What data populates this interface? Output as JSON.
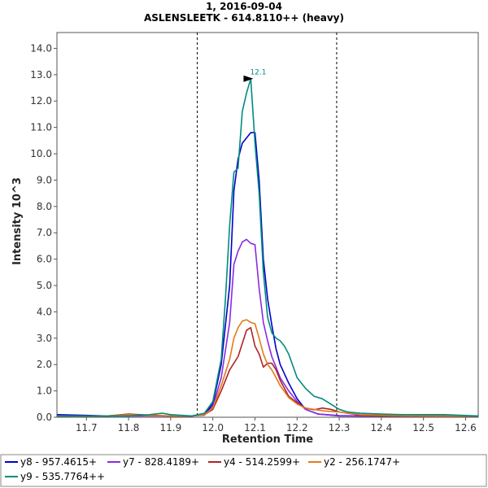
{
  "chart_data": {
    "type": "line",
    "title": "1, 2016-09-04",
    "subtitle": "ASLENSLEETK - 614.8110++ (heavy)",
    "xlabel": "Retention Time",
    "ylabel": "Intensity  10^3",
    "xlim": [
      11.63,
      12.63
    ],
    "ylim": [
      0,
      14.6
    ],
    "x_ticks": [
      "11.7",
      "11.8",
      "11.9",
      "12.0",
      "12.1",
      "12.2",
      "12.3",
      "12.4",
      "12.5",
      "12.6"
    ],
    "x_tick_values": [
      11.7,
      11.8,
      11.9,
      12.0,
      12.1,
      12.2,
      12.3,
      12.4,
      12.5,
      12.6
    ],
    "y_ticks": [
      "0.0",
      "1.0",
      "2.0",
      "3.0",
      "4.0",
      "5.0",
      "6.0",
      "7.0",
      "8.0",
      "9.0",
      "10.0",
      "11.0",
      "12.0",
      "13.0",
      "14.0"
    ],
    "y_tick_values": [
      0,
      1,
      2,
      3,
      4,
      5,
      6,
      7,
      8,
      9,
      10,
      11,
      12,
      13,
      14
    ],
    "boundaries": [
      11.963,
      12.294
    ],
    "peak": {
      "x": 12.1,
      "y": 12.85,
      "label": "12.1"
    },
    "series": [
      {
        "name": "y8 - 957.4615+",
        "color": "#0000cc",
        "x": [
          11.63,
          11.7,
          11.75,
          11.8,
          11.85,
          11.9,
          11.95,
          11.98,
          12.0,
          12.02,
          12.04,
          12.05,
          12.06,
          12.07,
          12.08,
          12.09,
          12.1,
          12.11,
          12.12,
          12.13,
          12.14,
          12.15,
          12.16,
          12.18,
          12.2,
          12.22,
          12.25,
          12.3,
          12.35,
          12.4,
          12.45,
          12.5,
          12.55,
          12.63
        ],
        "values": [
          0.1,
          0.07,
          0.05,
          0.08,
          0.06,
          0.05,
          0.05,
          0.1,
          0.5,
          2.0,
          5.0,
          8.6,
          9.8,
          10.4,
          10.6,
          10.8,
          10.8,
          9.0,
          6.0,
          4.5,
          3.5,
          2.6,
          2.0,
          1.3,
          0.7,
          0.3,
          0.12,
          0.06,
          0.05,
          0.05,
          0.05,
          0.05,
          0.05,
          0.05
        ]
      },
      {
        "name": "y7 - 828.4189+",
        "color": "#8a2be2",
        "x": [
          11.63,
          11.7,
          11.75,
          11.8,
          11.85,
          11.9,
          11.95,
          11.98,
          12.0,
          12.02,
          12.04,
          12.05,
          12.06,
          12.07,
          12.08,
          12.09,
          12.1,
          12.11,
          12.12,
          12.13,
          12.14,
          12.15,
          12.16,
          12.17,
          12.18,
          12.2,
          12.22,
          12.25,
          12.3,
          12.35,
          12.4,
          12.45,
          12.5,
          12.55,
          12.63
        ],
        "values": [
          0.06,
          0.05,
          0.05,
          0.05,
          0.05,
          0.05,
          0.05,
          0.08,
          0.4,
          1.5,
          3.6,
          5.8,
          6.3,
          6.65,
          6.75,
          6.6,
          6.55,
          4.9,
          3.6,
          2.9,
          2.3,
          1.9,
          1.5,
          1.25,
          1.0,
          0.6,
          0.3,
          0.12,
          0.05,
          0.05,
          0.05,
          0.05,
          0.05,
          0.05,
          0.05
        ]
      },
      {
        "name": "y4 - 514.2599+",
        "color": "#b22222",
        "x": [
          11.63,
          11.7,
          11.75,
          11.8,
          11.85,
          11.9,
          11.95,
          11.98,
          12.0,
          12.02,
          12.04,
          12.06,
          12.07,
          12.08,
          12.09,
          12.1,
          12.11,
          12.12,
          12.13,
          12.14,
          12.15,
          12.16,
          12.18,
          12.2,
          12.22,
          12.24,
          12.26,
          12.28,
          12.3,
          12.35,
          12.4,
          12.45,
          12.5,
          12.55,
          12.63
        ],
        "values": [
          0.05,
          0.05,
          0.05,
          0.12,
          0.08,
          0.05,
          0.05,
          0.1,
          0.3,
          1.0,
          1.8,
          2.3,
          2.8,
          3.3,
          3.4,
          2.7,
          2.4,
          1.9,
          2.05,
          2.05,
          1.8,
          1.4,
          0.8,
          0.55,
          0.35,
          0.28,
          0.35,
          0.3,
          0.2,
          0.08,
          0.05,
          0.05,
          0.05,
          0.05,
          0.05
        ]
      },
      {
        "name": "y2 - 256.1747+",
        "color": "#e07b1a",
        "x": [
          11.63,
          11.7,
          11.75,
          11.8,
          11.85,
          11.9,
          11.95,
          11.98,
          12.0,
          12.02,
          12.04,
          12.05,
          12.06,
          12.07,
          12.08,
          12.09,
          12.1,
          12.11,
          12.12,
          12.13,
          12.14,
          12.15,
          12.16,
          12.18,
          12.2,
          12.22,
          12.24,
          12.26,
          12.28,
          12.3,
          12.35,
          12.4,
          12.45,
          12.5,
          12.55,
          12.63
        ],
        "values": [
          0.05,
          0.05,
          0.05,
          0.1,
          0.06,
          0.05,
          0.05,
          0.1,
          0.35,
          1.2,
          2.2,
          3.0,
          3.4,
          3.65,
          3.7,
          3.6,
          3.55,
          3.0,
          2.4,
          2.0,
          1.8,
          1.5,
          1.2,
          0.75,
          0.5,
          0.35,
          0.3,
          0.25,
          0.22,
          0.2,
          0.1,
          0.08,
          0.06,
          0.05,
          0.05,
          0.05
        ]
      },
      {
        "name": "y9 - 535.7764++",
        "color": "#008b80",
        "x": [
          11.63,
          11.7,
          11.75,
          11.8,
          11.85,
          11.88,
          11.9,
          11.95,
          11.98,
          12.0,
          12.02,
          12.03,
          12.04,
          12.05,
          12.06,
          12.07,
          12.08,
          12.09,
          12.1,
          12.11,
          12.12,
          12.13,
          12.14,
          12.15,
          12.16,
          12.17,
          12.18,
          12.2,
          12.22,
          12.24,
          12.26,
          12.28,
          12.3,
          12.32,
          12.35,
          12.4,
          12.45,
          12.5,
          12.55,
          12.63
        ],
        "values": [
          0.05,
          0.05,
          0.05,
          0.05,
          0.1,
          0.15,
          0.1,
          0.05,
          0.15,
          0.6,
          2.2,
          4.5,
          7.3,
          9.3,
          9.45,
          11.6,
          12.3,
          12.85,
          10.4,
          8.5,
          5.5,
          3.8,
          3.2,
          3.0,
          2.9,
          2.7,
          2.4,
          1.5,
          1.1,
          0.8,
          0.7,
          0.5,
          0.3,
          0.2,
          0.15,
          0.12,
          0.1,
          0.1,
          0.1,
          0.05
        ]
      }
    ]
  }
}
